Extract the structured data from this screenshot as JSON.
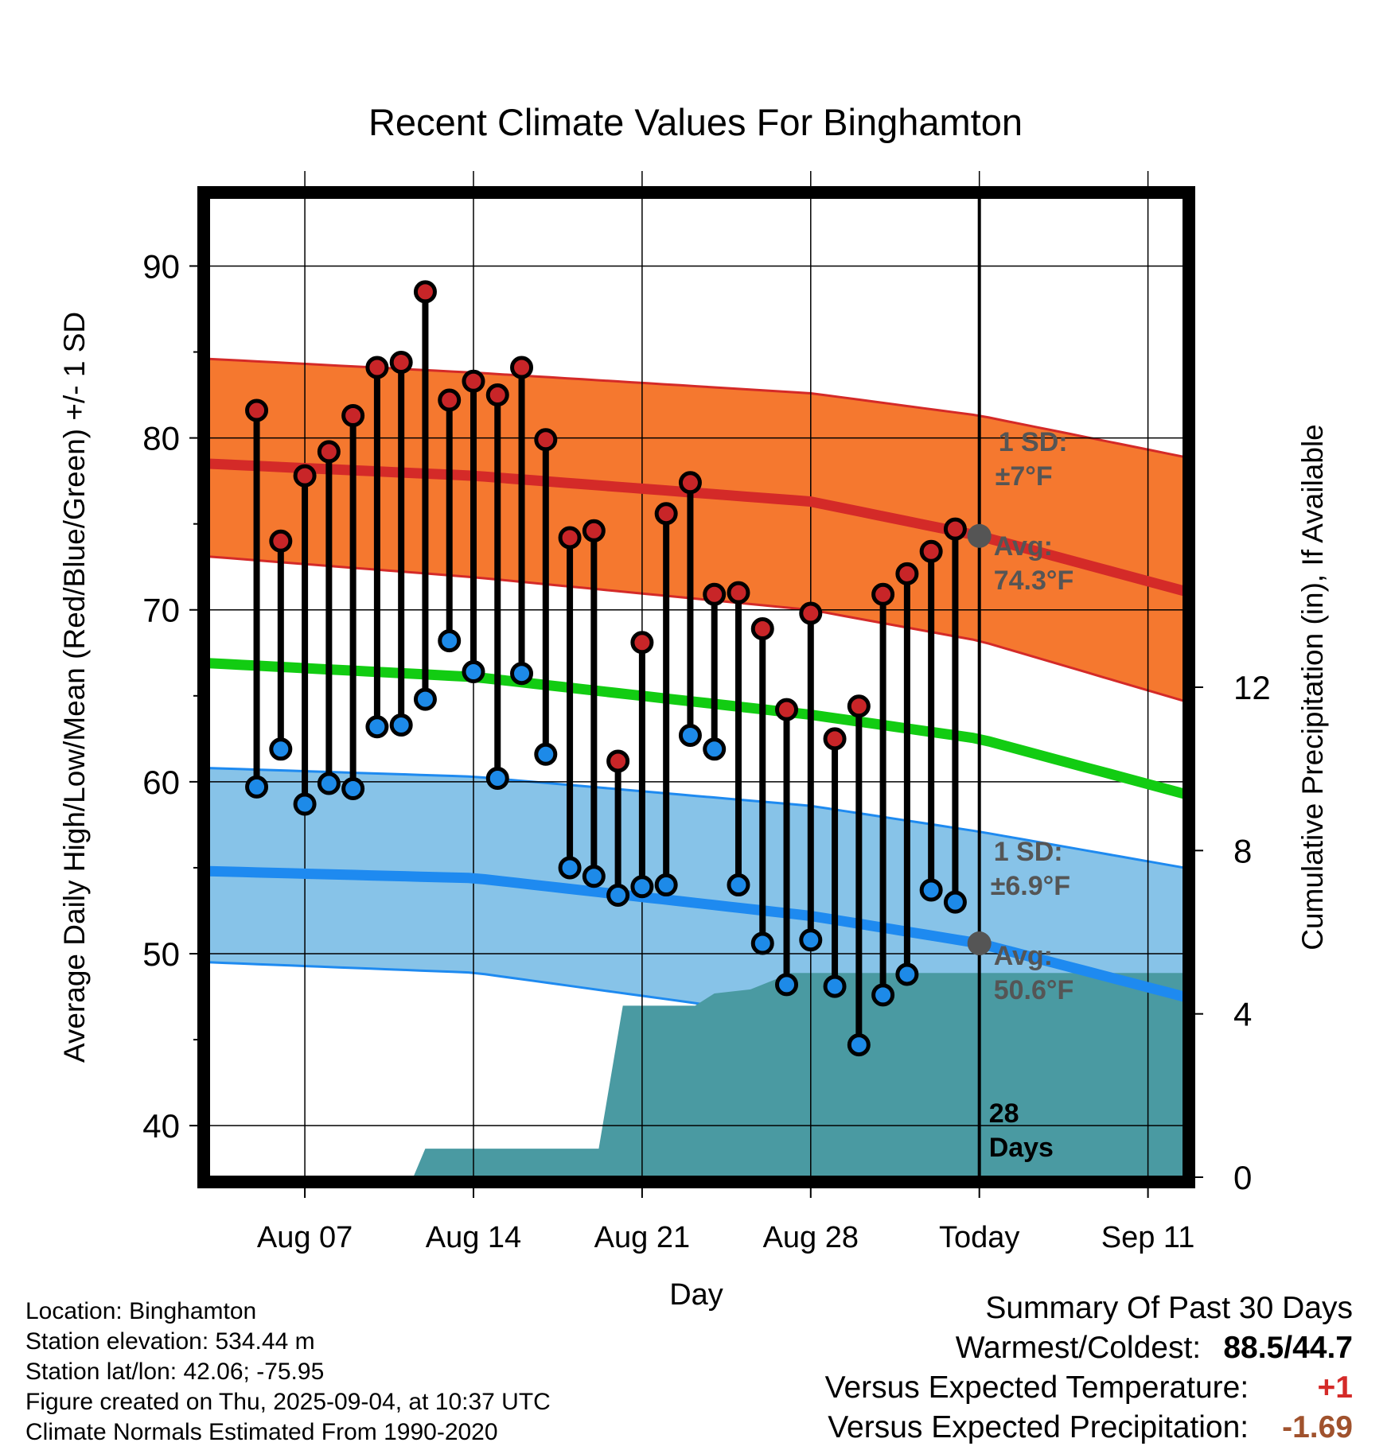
{
  "chart_data": {
    "type": "line",
    "title": "Recent Climate Values For Binghamton",
    "xlabel": "Day",
    "ylabel_left": "Average Daily High/Low/Mean (Red/Blue/Green) +/- 1 SD",
    "ylabel_right": "Cumulative Precipitation (in), If Available",
    "ylim_left": [
      37,
      94
    ],
    "yticks_left": [
      40,
      50,
      60,
      70,
      80,
      90
    ],
    "ylim_right": [
      0,
      24
    ],
    "yticks_right": [
      0,
      4,
      8,
      12
    ],
    "xlim": [
      3,
      43.5
    ],
    "xticks": [
      {
        "x": 7,
        "label": "Aug 07"
      },
      {
        "x": 14,
        "label": "Aug 14"
      },
      {
        "x": 21,
        "label": "Aug 21"
      },
      {
        "x": 28,
        "label": "Aug 28"
      },
      {
        "x": 35,
        "label": "Today"
      },
      {
        "x": 42,
        "label": "Sep 11"
      }
    ],
    "today_x": 35,
    "grid": true,
    "days": [
      5,
      6,
      7,
      8,
      9,
      10,
      11,
      12,
      13,
      14,
      15,
      16,
      17,
      18,
      19,
      20,
      21,
      22,
      23,
      24,
      25,
      26,
      27,
      28,
      29,
      30,
      31,
      32,
      33,
      34
    ],
    "observed_high": [
      81.6,
      74.0,
      77.8,
      79.2,
      81.3,
      84.1,
      84.4,
      88.5,
      82.2,
      83.3,
      82.5,
      84.1,
      79.9,
      74.2,
      74.6,
      61.2,
      68.1,
      75.6,
      77.4,
      70.9,
      71.0,
      68.9,
      64.2,
      69.8,
      62.5,
      64.4,
      70.9,
      72.1,
      73.4,
      74.7
    ],
    "observed_low": [
      59.7,
      61.9,
      58.7,
      59.9,
      59.6,
      63.2,
      63.3,
      64.8,
      68.2,
      66.4,
      60.2,
      66.3,
      61.6,
      55.0,
      54.5,
      53.4,
      53.9,
      54.0,
      62.7,
      61.9,
      54.0,
      50.6,
      48.2,
      50.8,
      48.1,
      44.7,
      47.6,
      48.8,
      53.7,
      53.0
    ],
    "normal_high": {
      "x": [
        3,
        14,
        28,
        35,
        43.5
      ],
      "values": [
        78.5,
        77.8,
        76.3,
        74.3,
        71.1
      ]
    },
    "normal_high_band": {
      "upper": [
        84.6,
        83.8,
        82.6,
        81.3,
        78.9
      ],
      "lower": [
        73.1,
        71.9,
        70.0,
        68.2,
        64.7
      ]
    },
    "normal_mean": {
      "x": [
        3,
        14,
        28,
        35,
        43.5
      ],
      "values": [
        66.9,
        66.1,
        63.9,
        62.5,
        59.3
      ]
    },
    "normal_low": {
      "x": [
        3,
        14,
        28,
        35,
        43.5
      ],
      "values": [
        54.8,
        54.4,
        52.2,
        50.6,
        47.5
      ]
    },
    "normal_low_band": {
      "upper": [
        60.8,
        60.3,
        58.6,
        57.1,
        55.0
      ],
      "lower": [
        49.5,
        48.9,
        46.2,
        44.2,
        41.3
      ]
    },
    "precip_cumulative": {
      "x": [
        3,
        11.5,
        12,
        19.2,
        20.2,
        23.2,
        24,
        25.5,
        27.2,
        28,
        43.5
      ],
      "values": [
        0,
        0,
        0.7,
        0.7,
        4.2,
        4.2,
        4.5,
        4.6,
        5.0,
        5.0,
        5.0
      ]
    },
    "annotations": {
      "high_sd_label": "1 SD:",
      "high_sd_value": "±7°F",
      "high_avg_label": "Avg:",
      "high_avg_value": "74.3°F",
      "low_sd_label": "1 SD:",
      "low_sd_value": "±6.9°F",
      "low_avg_label": "Avg:",
      "low_avg_value": "50.6°F",
      "days_count": "28",
      "days_label": "Days"
    },
    "colors": {
      "high_band": "#f5782f",
      "high_line": "#d42a28",
      "mean_line": "#12cc12",
      "low_band": "#87c3e8",
      "low_line": "#1e8af0",
      "precip_fill": "#4a9aa2",
      "high_marker": "#c82528",
      "low_marker": "#1d8ae8",
      "annotation_text": "#555555"
    }
  },
  "footer": {
    "location": "Location: Binghamton",
    "elevation": "Station elevation: 534.44 m",
    "latlon": "Station lat/lon: 42.06; -75.95",
    "created": "Figure created on Thu, 2025-09-04, at 10:37 UTC",
    "normals": "Climate Normals Estimated From 1990-2020"
  },
  "summary": {
    "heading": "Summary Of Past 30 Days",
    "warmest_label": "Warmest/Coldest:",
    "warmest_value": "88.5/44.7",
    "temp_label": "Versus Expected Temperature:",
    "temp_value": "+1",
    "temp_color": "#d42a28",
    "precip_label": "Versus Expected Precipitation:",
    "precip_value": "-1.69",
    "precip_color": "#a0522d"
  }
}
